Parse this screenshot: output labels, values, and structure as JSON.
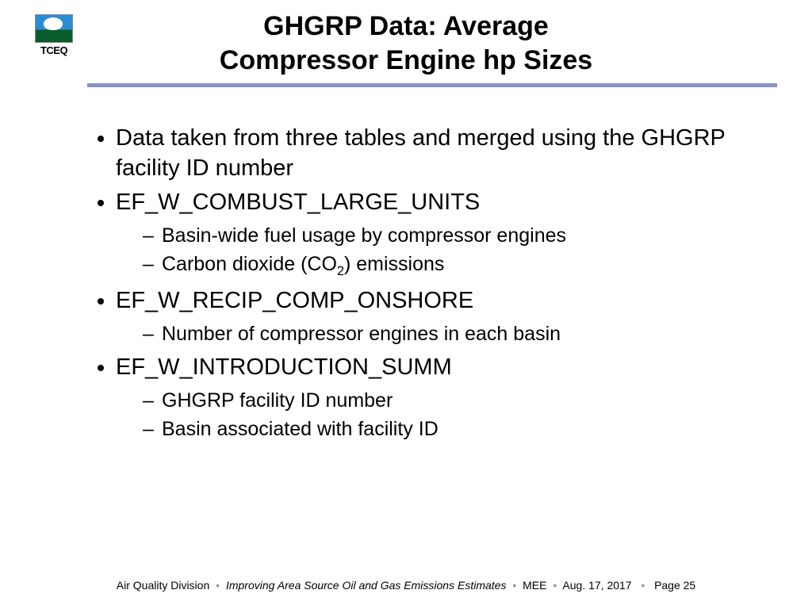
{
  "logo_label": "TCEQ",
  "title_line1": "GHGRP Data: Average",
  "title_line2": "Compressor Engine hp Sizes",
  "bullets": {
    "b0": "Data taken from three tables and merged using the GHGRP facility ID number",
    "b1": "EF_W_COMBUST_LARGE_UNITS",
    "b1_subs": {
      "s0": "Basin-wide fuel usage by compressor engines",
      "s1_pre": "Carbon dioxide (CO",
      "s1_sub": "2",
      "s1_post": ") emissions"
    },
    "b2": "EF_W_RECIP_COMP_ONSHORE",
    "b2_subs": {
      "s0": "Number of compressor engines in each basin"
    },
    "b3": "EF_W_INTRODUCTION_SUMM",
    "b3_subs": {
      "s0": "GHGRP facility ID number",
      "s1": "Basin associated with facility ID"
    }
  },
  "footer": {
    "division": "Air Quality Division",
    "presentation": "Improving Area Source Oil and Gas Emissions Estimates",
    "author": "MEE",
    "date": "Aug. 17, 2017",
    "page": "Page 25"
  },
  "colors": {
    "rule": "#8a90c8",
    "text": "#000000",
    "background": "#ffffff"
  }
}
